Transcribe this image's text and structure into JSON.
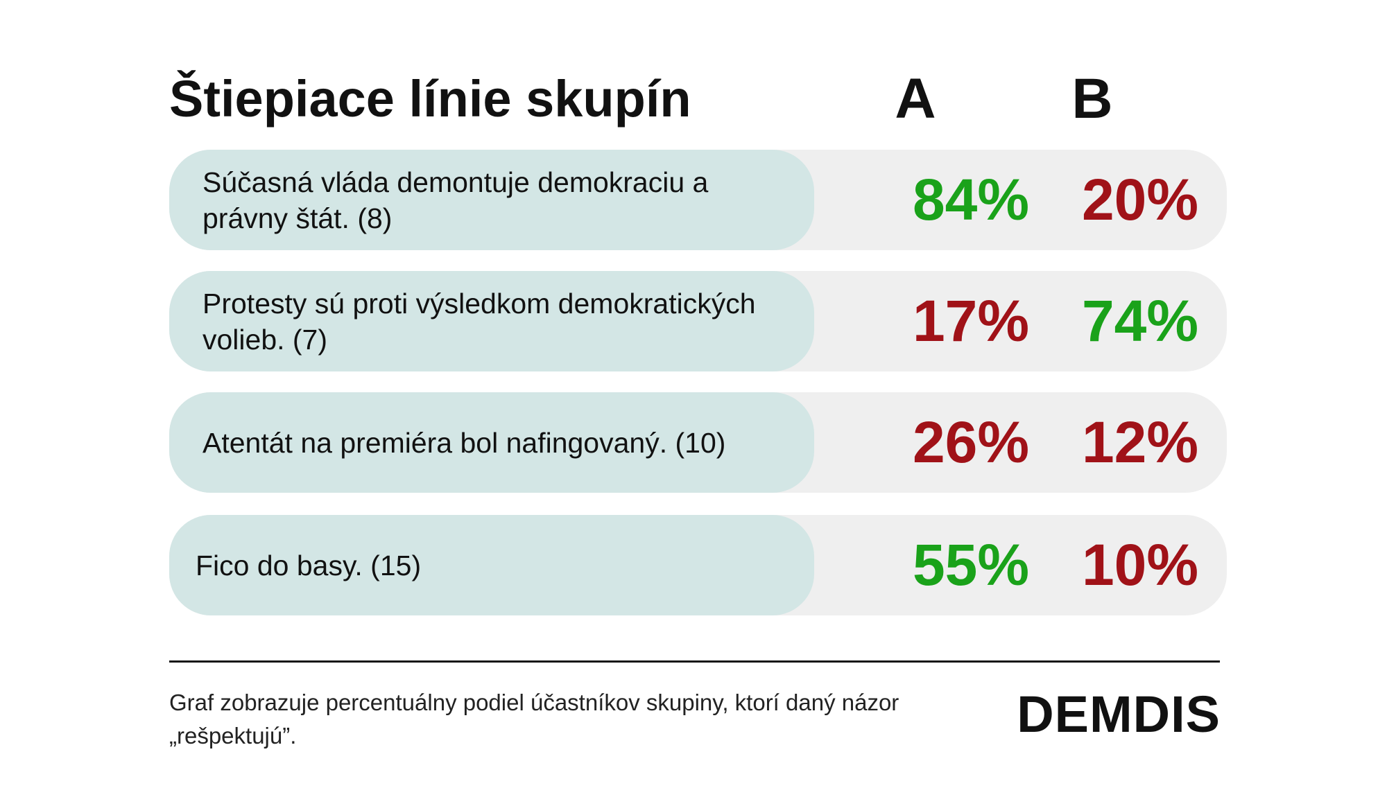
{
  "title": "Štiepiace línie skupín",
  "columns": [
    "A",
    "B"
  ],
  "colors": {
    "positive": "#1aa21a",
    "negative": "#a01218",
    "label_bg": "#d3e6e5",
    "row_bg": "#efefef"
  },
  "rows": [
    {
      "label": "Súčasná vláda demontuje demokraciu a právny štát. (8)",
      "a": "84%",
      "b": "20%",
      "a_color": "#1aa21a",
      "b_color": "#a01218"
    },
    {
      "label": "Protesty sú proti výsledkom demokratických volieb. (7)",
      "a": "17%",
      "b": "74%",
      "a_color": "#a01218",
      "b_color": "#1aa21a"
    },
    {
      "label": "Atentát na premiéra bol nafingovaný. (10)",
      "a": "26%",
      "b": "12%",
      "a_color": "#a01218",
      "b_color": "#a01218"
    },
    {
      "label": "Fico do basy. (15)",
      "a": "55%",
      "b": "10%",
      "a_color": "#1aa21a",
      "b_color": "#a01218"
    }
  ],
  "footnote": "Graf zobrazuje percentuálny podiel účastníkov skupiny, ktorí daný názor „rešpektujú”.",
  "logo": "DEMDIS",
  "chart_data": {
    "type": "table",
    "title": "Štiepiace línie skupín",
    "columns": [
      "A",
      "B"
    ],
    "rows": [
      {
        "category": "Súčasná vláda demontuje demokraciu a právny štát. (8)",
        "values": [
          84,
          20
        ]
      },
      {
        "category": "Protesty sú proti výsledkom demokratických volieb. (7)",
        "values": [
          17,
          74
        ]
      },
      {
        "category": "Atentát na premiéra bol nafingovaný. (10)",
        "values": [
          26,
          12
        ]
      },
      {
        "category": "Fico do basy. (15)",
        "values": [
          55,
          10
        ]
      }
    ],
    "unit": "%",
    "legend": "none"
  }
}
